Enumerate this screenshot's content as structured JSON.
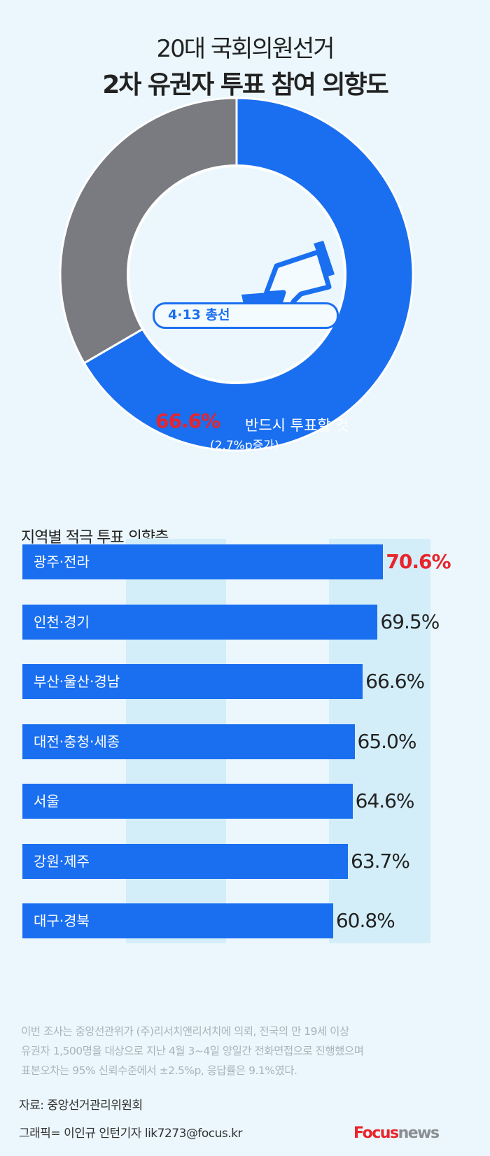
{
  "title_line1": "20대 국회의원선거",
  "title_line2": "2차 유권자 투표 참여 의향도",
  "chart_data": [
    {
      "type": "pie",
      "style": "donut",
      "center_label": "4·13 총선",
      "slices": [
        {
          "label": "반드시 투표할 것",
          "value": 66.6,
          "value_text": "66.6%",
          "change": "(2.7%p증가)",
          "color": "#1a6ff0"
        },
        {
          "label": "",
          "value": 33.4,
          "color": "#7a7b80"
        }
      ]
    },
    {
      "type": "bar",
      "orientation": "horizontal",
      "title": "지역별 적극 투표 의향층",
      "categories": [
        "광주·전라",
        "인천·경기",
        "부산·울산·경남",
        "대전·충청·세종",
        "서울",
        "강원·제주",
        "대구·경북"
      ],
      "values": [
        70.6,
        69.5,
        66.6,
        65.0,
        64.6,
        63.7,
        60.8
      ],
      "value_labels": [
        "70.6%",
        "69.5%",
        "66.6%",
        "65.0%",
        "64.6%",
        "63.7%",
        "60.8%"
      ],
      "bar_color": "#1a6ff0",
      "highlight_color": "#e8242c"
    }
  ],
  "note_lines": [
    "이번 조사는 중앙선관위가 (주)리서치앤리서치에 의뢰, 전국의 만 19세 이상",
    "유권자 1,500명을 대상으로 지난 4월 3~4일 양일간 전화면접으로 진행했으며",
    "표본오차는 95% 신뢰수준에서 ±2.5%p, 응답률은 9.1%였다."
  ],
  "source": "자료: 중앙선거관리위원회",
  "credit": "그래픽= 이인규 인턴기자 lik7273@focus.kr",
  "logo": {
    "part1": "Focus",
    "part2": "news"
  }
}
